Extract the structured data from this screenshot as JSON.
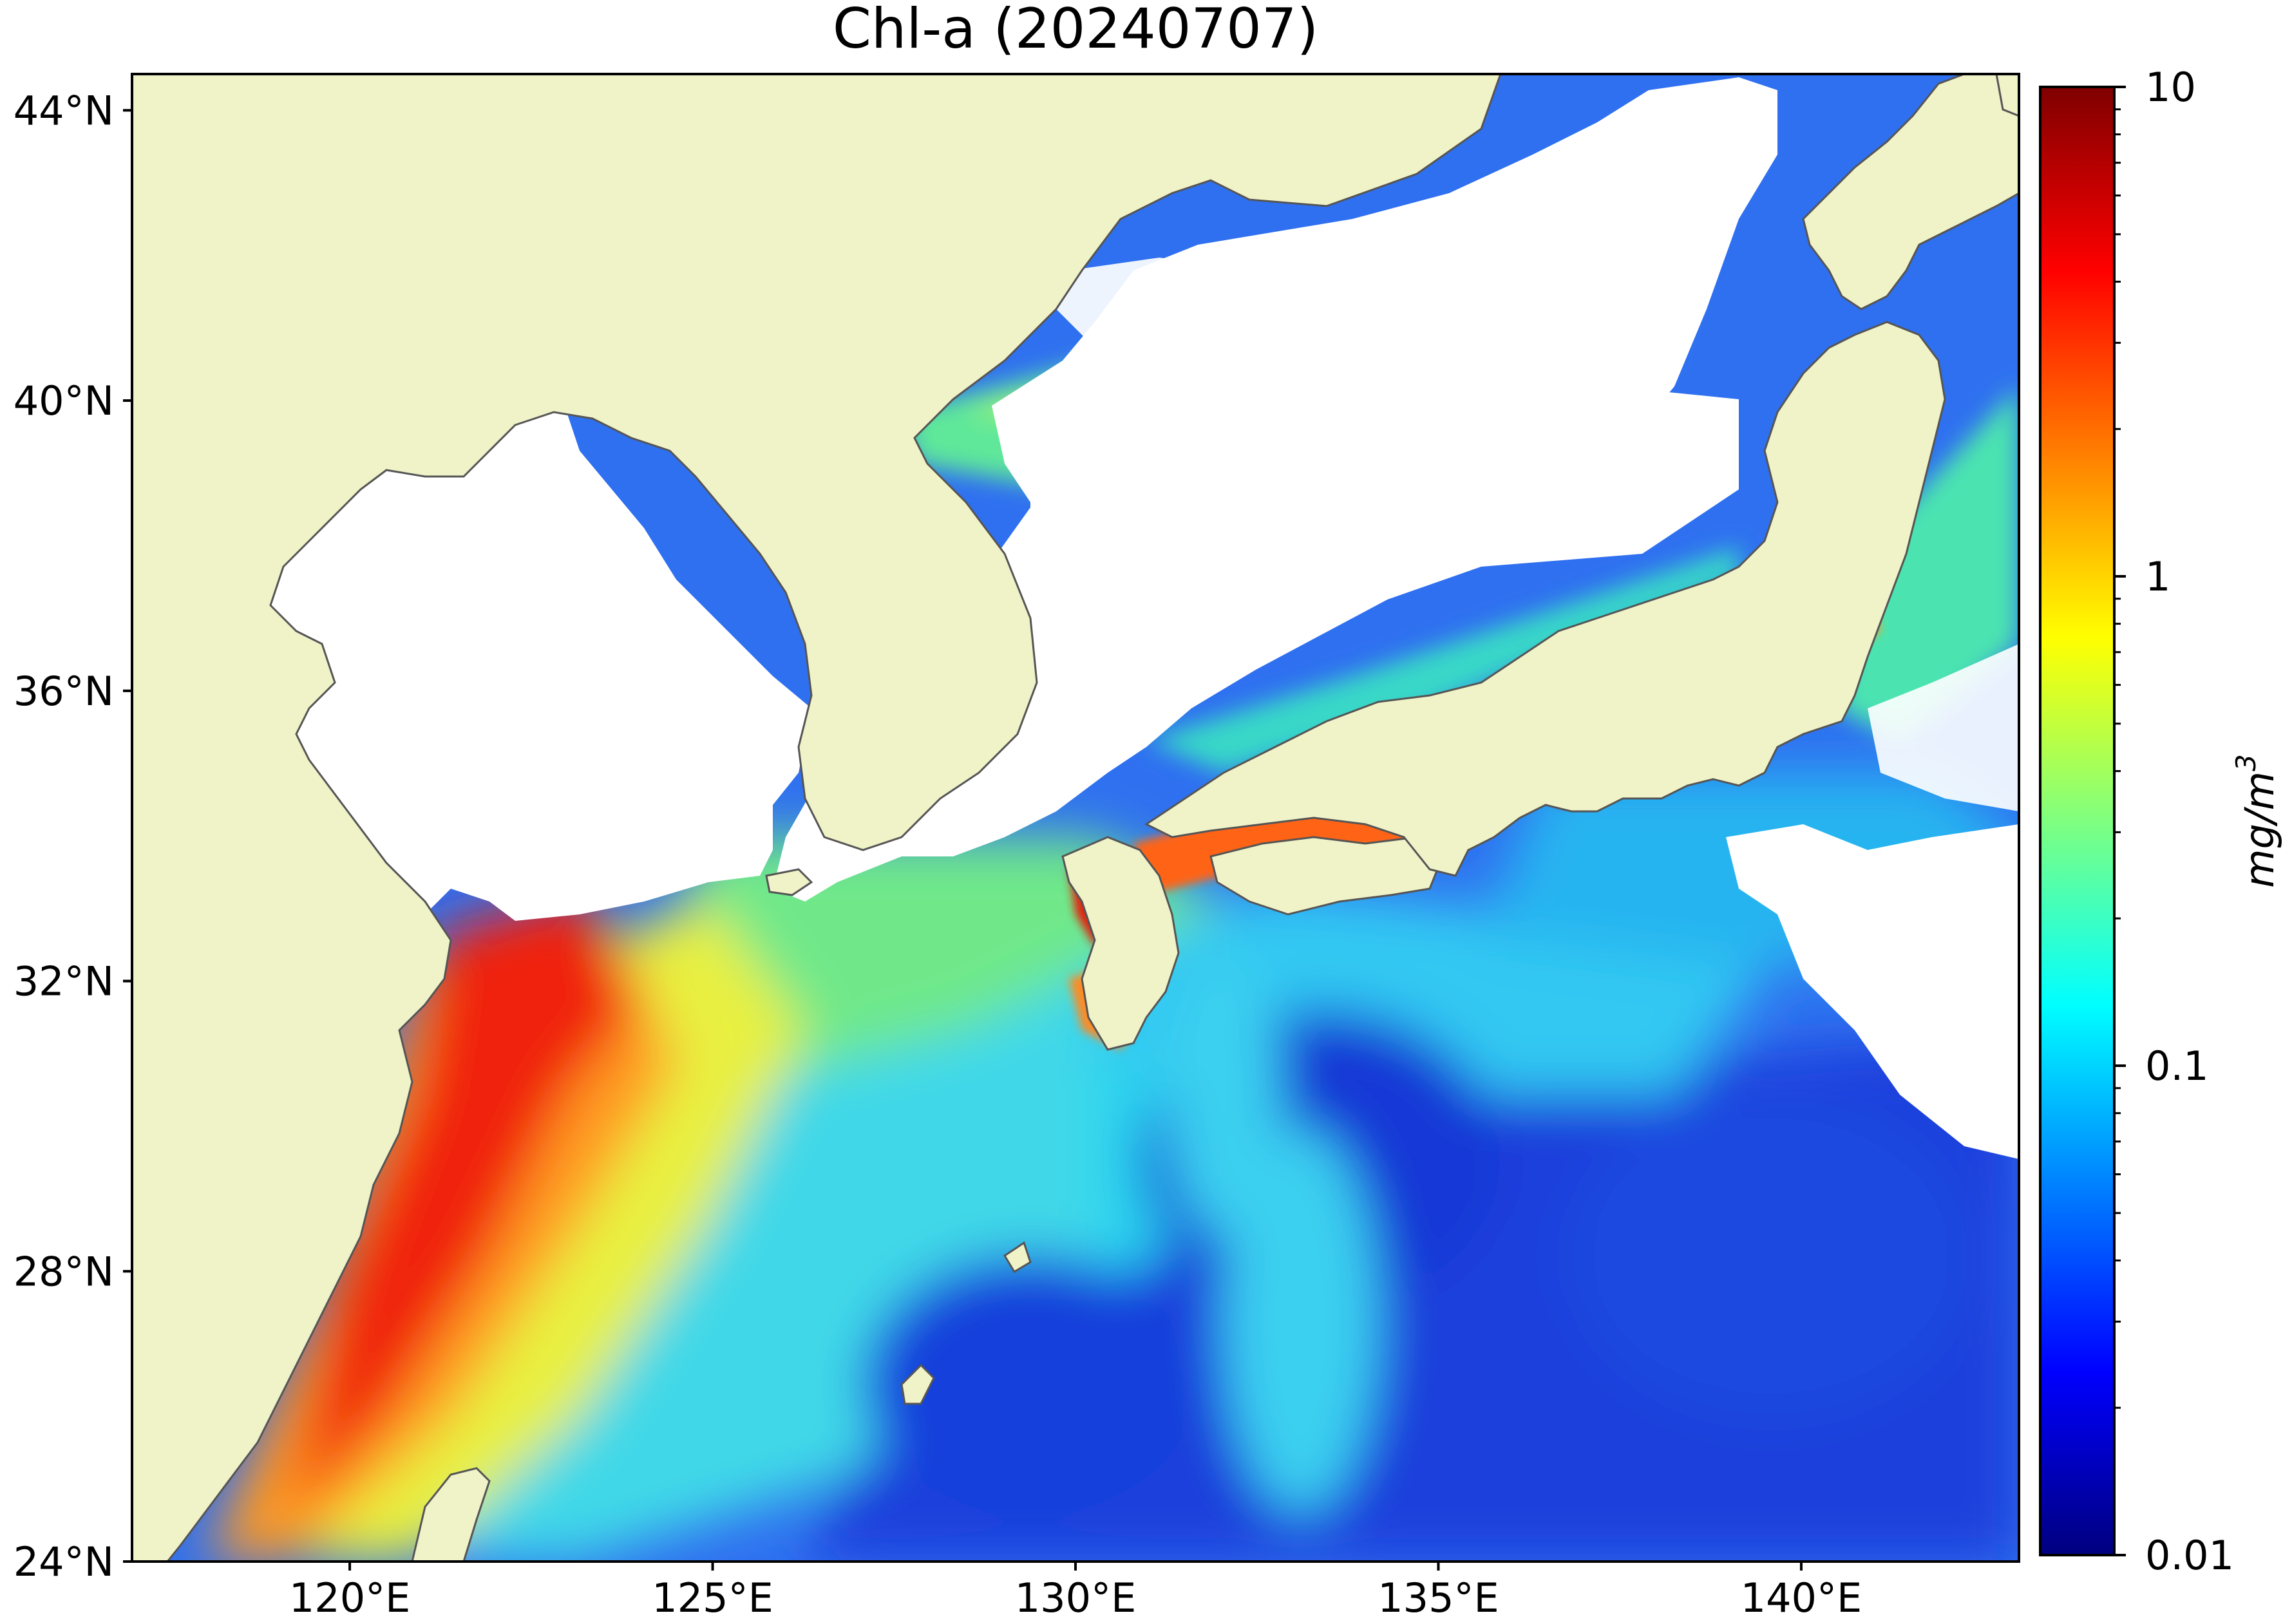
{
  "title": "Chl-a (20240707)",
  "colors": {
    "land": "#f0f2c8",
    "cloud": "#ffffff",
    "coast": "#555555"
  },
  "map": {
    "lon_range": [
      117,
      143
    ],
    "lat_range": [
      24,
      44.5
    ],
    "lon_ticks": [
      {
        "value": 120,
        "label": "120°E"
      },
      {
        "value": 125,
        "label": "125°E"
      },
      {
        "value": 130,
        "label": "130°E"
      },
      {
        "value": 135,
        "label": "135°E"
      },
      {
        "value": 140,
        "label": "140°E"
      }
    ],
    "lat_ticks": [
      {
        "value": 44,
        "label": "44°N"
      },
      {
        "value": 40,
        "label": "40°N"
      },
      {
        "value": 36,
        "label": "36°N"
      },
      {
        "value": 32,
        "label": "32°N"
      },
      {
        "value": 28,
        "label": "28°N"
      },
      {
        "value": 24,
        "label": "24°N"
      }
    ]
  },
  "colorbar": {
    "scale": "log",
    "range": [
      0.01,
      10
    ],
    "unit": "mg/m",
    "unit_exp": "3",
    "ticks": [
      {
        "value": 10,
        "label": "10"
      },
      {
        "value": 1,
        "label": "1"
      },
      {
        "value": 0.1,
        "label": "0.1"
      },
      {
        "value": 0.01,
        "label": "0.01"
      }
    ],
    "stops": [
      "#00007f",
      "#0000ff",
      "#007fff",
      "#00ffff",
      "#7fff7f",
      "#ffff00",
      "#ff7f00",
      "#ff0000",
      "#7f0000"
    ]
  }
}
